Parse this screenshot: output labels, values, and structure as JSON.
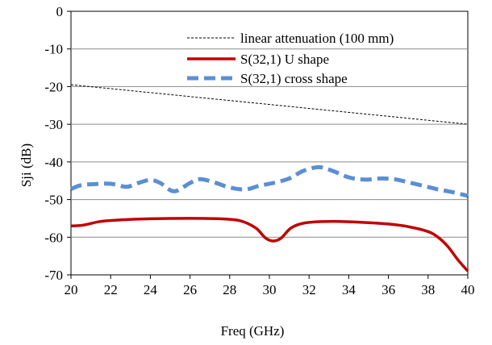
{
  "chart_data": {
    "type": "line",
    "xlabel": "Freq (GHz)",
    "ylabel": "Sji (dB)",
    "xlim": [
      20,
      40
    ],
    "ylim": [
      -70,
      0
    ],
    "x_ticks": [
      "20",
      "22",
      "24",
      "26",
      "28",
      "30",
      "32",
      "34",
      "36",
      "38",
      "40"
    ],
    "y_ticks": [
      "0",
      "-10",
      "-20",
      "-30",
      "-40",
      "-50",
      "-60",
      "-70"
    ],
    "grid": "horizontal",
    "legend_position": "top-right",
    "series": [
      {
        "name": "linear attenuation (100 mm)",
        "color": "#000000",
        "style": "dotted-thin",
        "x": [
          20,
          40
        ],
        "y": [
          -19.5,
          -30
        ]
      },
      {
        "name": "S(32,1) U shape",
        "color": "#c00000",
        "style": "solid-thick",
        "x": [
          20,
          20.6,
          21.5,
          22.5,
          24,
          26,
          27.5,
          28.5,
          29.3,
          29.8,
          30.2,
          30.6,
          31.1,
          31.8,
          33,
          34.5,
          36,
          37,
          38,
          38.5,
          39,
          39.5,
          40
        ],
        "y": [
          -57,
          -56.8,
          -55.8,
          -55.4,
          -55.1,
          -55,
          -55.1,
          -55.6,
          -57.5,
          -60.2,
          -61,
          -60.2,
          -57.5,
          -56.2,
          -55.8,
          -56,
          -56.5,
          -57.2,
          -58.5,
          -60,
          -62.5,
          -66,
          -69
        ]
      },
      {
        "name": "S(32,1) cross shape",
        "color": "#5b8fd4",
        "style": "dashed-thick",
        "x": [
          20,
          20.5,
          21.2,
          22,
          22.8,
          23.4,
          24,
          24.5,
          25.2,
          26,
          26.5,
          27.2,
          28,
          28.8,
          29.5,
          30.2,
          31,
          31.7,
          32.5,
          33.2,
          34,
          34.8,
          35.6,
          36.3,
          37,
          37.8,
          38.5,
          39.2,
          40
        ],
        "y": [
          -47.2,
          -46.2,
          -45.9,
          -45.8,
          -46.6,
          -45.6,
          -44.8,
          -45.6,
          -47.8,
          -45.6,
          -44.6,
          -45.4,
          -46.8,
          -47.3,
          -46.3,
          -45.6,
          -44.4,
          -42.4,
          -41.4,
          -42.4,
          -44.1,
          -44.7,
          -44.4,
          -44.6,
          -45.4,
          -46.4,
          -47.3,
          -48,
          -49
        ]
      }
    ]
  }
}
